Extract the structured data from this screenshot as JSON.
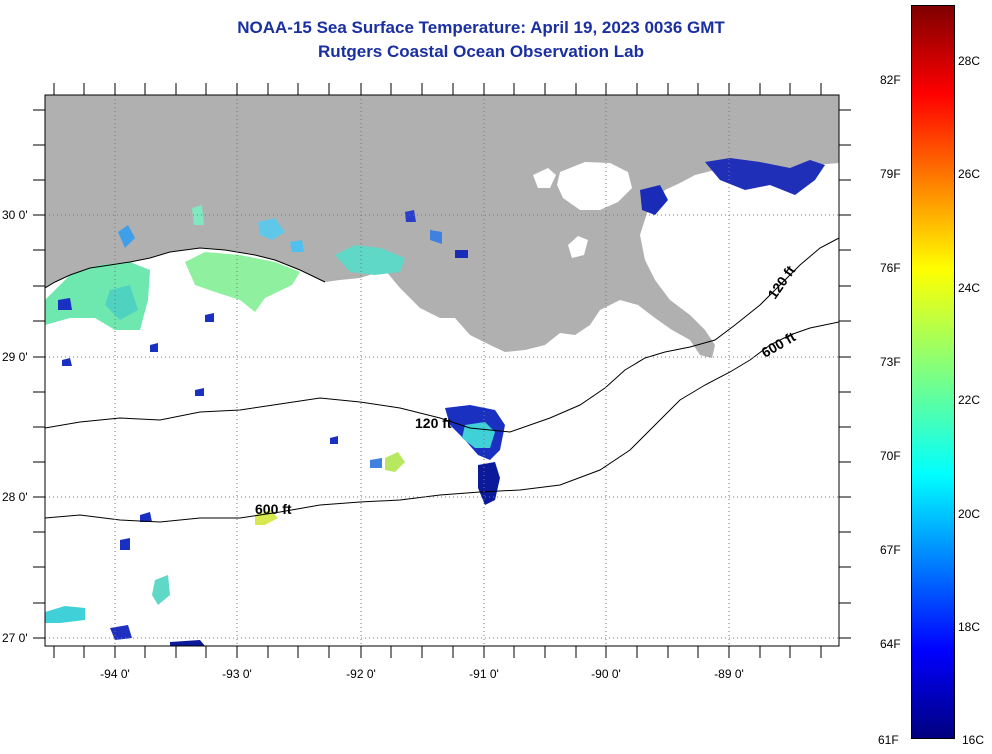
{
  "title": {
    "line1": "NOAA-15 Sea Surface Temperature:  April 19, 2023 0036 GMT",
    "line2": "Rutgers Coastal Ocean Observation Lab"
  },
  "map": {
    "lon_labels": [
      "-94 0'",
      "-93 0'",
      "-92 0'",
      "-91 0'",
      "-90 0'",
      "-89 0'"
    ],
    "lat_labels": [
      "30 0'",
      "29 0'",
      "28 0'",
      "27 0'"
    ],
    "contour_labels": [
      "120 ft",
      "600 ft",
      "120 ft",
      "600 ft"
    ],
    "colors": {
      "land": "#b0b0b0",
      "water": "#ffffff",
      "title": "#1a2fa0"
    }
  },
  "colorbar": {
    "fahrenheit": [
      "82F",
      "79F",
      "76F",
      "73F",
      "70F",
      "67F",
      "64F",
      "61F"
    ],
    "celsius": [
      "28C",
      "26C",
      "24C",
      "22C",
      "20C",
      "18C",
      "16C"
    ],
    "colormap": "jet"
  }
}
